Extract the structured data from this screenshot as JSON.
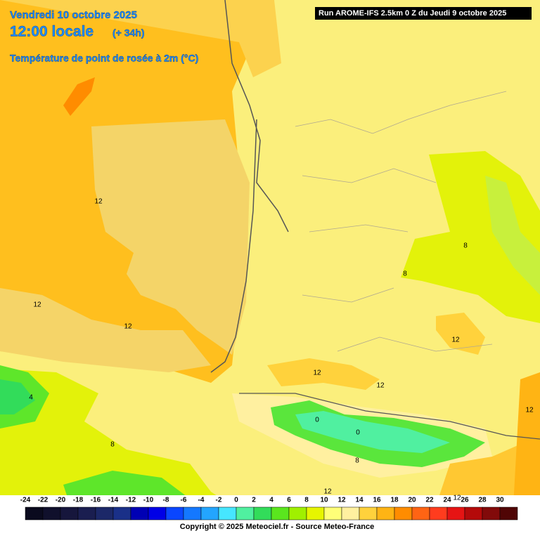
{
  "header": {
    "date": "Vendredi 10 octobre 2025",
    "time": "12:00 locale",
    "lead": "(+ 34h)",
    "variable": "Température de point de rosée à 2m (°C)",
    "run": "Run AROME-IFS 2.5km 0 Z du Jeudi 9 octobre 2025"
  },
  "map": {
    "labels": [
      "12",
      "12",
      "12",
      "12",
      "12",
      "12",
      "12",
      "12",
      "12",
      "8",
      "8",
      "8",
      "8",
      "4",
      "0",
      "0"
    ]
  },
  "legend": {
    "ticks": [
      -24,
      -22,
      -20,
      -18,
      -16,
      -14,
      -12,
      -10,
      -8,
      -6,
      -4,
      -2,
      0,
      2,
      4,
      6,
      8,
      10,
      12,
      14,
      16,
      18,
      20,
      22,
      24,
      26,
      28,
      30
    ],
    "colors": [
      "#0a0a1e",
      "#10102c",
      "#16163c",
      "#1a1e50",
      "#1c2868",
      "#1a3088",
      "#0000b4",
      "#0000e6",
      "#0a46ff",
      "#1478ff",
      "#23a5ff",
      "#46e6ff",
      "#50f0a0",
      "#32dc5a",
      "#5ae61e",
      "#a0f000",
      "#e6f500",
      "#ffff78",
      "#fff0a0",
      "#ffd23c",
      "#ffb414",
      "#ff8c00",
      "#ff6414",
      "#ff3c1e",
      "#e61414",
      "#b40a0a",
      "#820a0a",
      "#500505"
    ]
  },
  "footer": {
    "copyright": "Copyright © 2025 Meteociel.fr - Source Meteo-France"
  }
}
